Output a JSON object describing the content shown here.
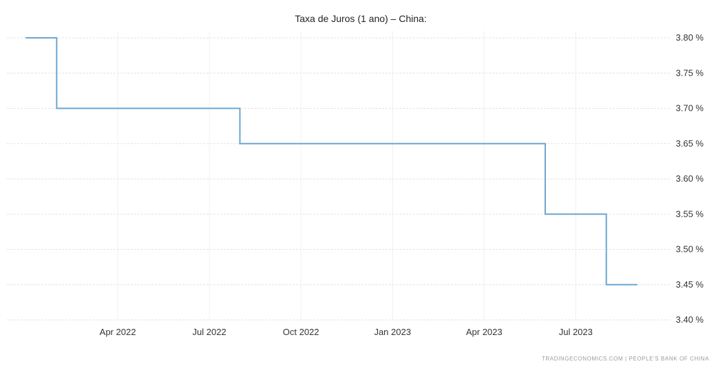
{
  "chart_data": {
    "type": "line",
    "step": true,
    "title": "Taxa de Juros (1 ano) – China:",
    "xlabel": "",
    "ylabel": "",
    "x_ticks": [
      "Apr 2022",
      "Jul 2022",
      "Oct 2022",
      "Jan 2023",
      "Apr 2023",
      "Jul 2023"
    ],
    "x_range": [
      "2022-01",
      "2023-09"
    ],
    "y_ticks": [
      "3.80 %",
      "3.75 %",
      "3.70 %",
      "3.65 %",
      "3.60 %",
      "3.55 %",
      "3.50 %",
      "3.45 %",
      "3.40 %"
    ],
    "ylim": [
      3.4,
      3.8
    ],
    "grid": true,
    "legend": "none",
    "series": [
      {
        "color": "#6aa6cf",
        "points": [
          {
            "x": "2022-01",
            "y": 3.8
          },
          {
            "x": "2022-02",
            "y": 3.7
          },
          {
            "x": "2022-08",
            "y": 3.65
          },
          {
            "x": "2023-06",
            "y": 3.55
          },
          {
            "x": "2023-08",
            "y": 3.45
          },
          {
            "x": "2023-09",
            "y": 3.45
          }
        ]
      }
    ],
    "source": "TRADINGECONOMICS.COM | PEOPLE'S BANK OF CHINA"
  }
}
